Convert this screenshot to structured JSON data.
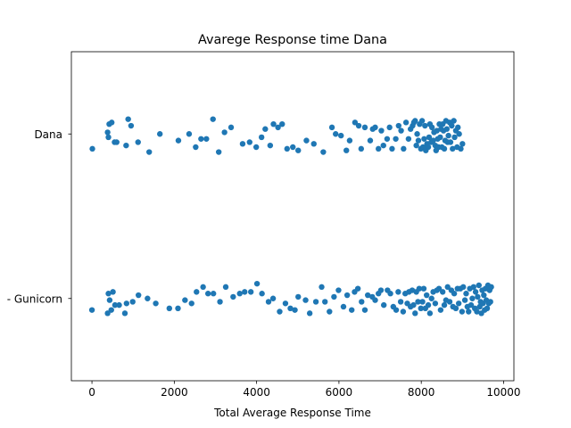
{
  "chart_data": {
    "type": "scatter",
    "title": "Avarege Response time Dana",
    "xlabel": "Total Average Response Time",
    "ylabel": "",
    "xlim": [
      -500,
      10250
    ],
    "x_ticks": [
      0,
      2000,
      4000,
      6000,
      8000,
      10000
    ],
    "categories": [
      "Dana",
      "Gunicorn"
    ],
    "category_tick_labels": [
      "Dana",
      "- Gunicorn"
    ],
    "marker_color": "#1f77b4",
    "grid": false,
    "series": [
      {
        "category": "Dana",
        "x": [
          10,
          380,
          400,
          420,
          480,
          550,
          600,
          830,
          880,
          950,
          1120,
          1390,
          1650,
          2100,
          2360,
          2520,
          2650,
          2780,
          2940,
          3080,
          3220,
          3380,
          3660,
          3830,
          3990,
          4120,
          4210,
          4330,
          4410,
          4520,
          4620,
          4740,
          4880,
          5010,
          5210,
          5390,
          5620,
          5830,
          5920,
          6050,
          6180,
          6260,
          6390,
          6480,
          6540,
          6630,
          6760,
          6820,
          6880,
          6960,
          7030,
          7080,
          7170,
          7230,
          7290,
          7380,
          7450,
          7510,
          7570,
          7630,
          7690,
          7740,
          7790,
          7820,
          7850,
          7880,
          7900,
          7930,
          7960,
          7990,
          8020,
          8040,
          8070,
          8090,
          8110,
          8140,
          8170,
          8190,
          8210,
          8240,
          8260,
          8290,
          8310,
          8340,
          8360,
          8380,
          8400,
          8420,
          8440,
          8460,
          8480,
          8500,
          8520,
          8540,
          8560,
          8580,
          8600,
          8620,
          8640,
          8660,
          8690,
          8710,
          8740,
          8760,
          8790,
          8810,
          8840,
          8870,
          8890,
          8920,
          8960,
          9000
        ],
        "y_jitter": [
          0.09,
          -0.01,
          0.02,
          -0.06,
          -0.07,
          0.05,
          0.05,
          0.07,
          -0.09,
          -0.05,
          0.05,
          0.11,
          0.0,
          0.04,
          0.0,
          0.08,
          0.03,
          0.03,
          -0.09,
          0.11,
          -0.01,
          -0.04,
          0.06,
          0.05,
          0.08,
          0.02,
          -0.03,
          0.07,
          -0.06,
          -0.04,
          -0.06,
          0.09,
          0.08,
          0.1,
          0.04,
          0.06,
          0.11,
          -0.04,
          0.0,
          0.01,
          0.1,
          0.04,
          -0.07,
          -0.05,
          0.09,
          -0.04,
          0.04,
          -0.03,
          -0.04,
          0.09,
          -0.02,
          0.07,
          0.03,
          -0.04,
          0.09,
          0.03,
          -0.05,
          -0.02,
          0.09,
          -0.07,
          0.03,
          -0.03,
          -0.05,
          -0.07,
          -0.08,
          0.07,
          0.0,
          0.04,
          -0.06,
          0.09,
          -0.08,
          0.08,
          0.03,
          -0.05,
          0.1,
          0.06,
          0.08,
          0.02,
          -0.06,
          0.05,
          -0.04,
          0.04,
          -0.01,
          0.07,
          0.1,
          -0.02,
          0.03,
          0.08,
          -0.06,
          0.02,
          -0.03,
          0.08,
          -0.06,
          -0.02,
          0.09,
          0.04,
          -0.08,
          -0.03,
          0.05,
          0.01,
          -0.07,
          0.05,
          -0.05,
          0.09,
          -0.08,
          0.02,
          -0.02,
          0.08,
          -0.04,
          0.0,
          0.09,
          0.06
        ]
      },
      {
        "category": "Gunicorn",
        "x": [
          0,
          380,
          400,
          430,
          470,
          510,
          560,
          660,
          800,
          840,
          990,
          1130,
          1350,
          1550,
          1880,
          2090,
          2260,
          2420,
          2540,
          2700,
          2820,
          2950,
          3110,
          3250,
          3430,
          3590,
          3710,
          3860,
          4010,
          4130,
          4290,
          4400,
          4560,
          4700,
          4820,
          4930,
          5010,
          5190,
          5290,
          5440,
          5580,
          5660,
          5770,
          5880,
          5990,
          6110,
          6200,
          6310,
          6380,
          6460,
          6550,
          6630,
          6700,
          6810,
          6880,
          6960,
          7020,
          7090,
          7180,
          7250,
          7320,
          7390,
          7440,
          7500,
          7560,
          7610,
          7660,
          7700,
          7740,
          7780,
          7810,
          7850,
          7880,
          7920,
          7950,
          7990,
          8030,
          8060,
          8100,
          8130,
          8170,
          8210,
          8250,
          8290,
          8340,
          8380,
          8430,
          8470,
          8520,
          8560,
          8600,
          8640,
          8690,
          8730,
          8770,
          8800,
          8840,
          8880,
          8910,
          8950,
          8990,
          9020,
          9060,
          9090,
          9120,
          9150,
          9180,
          9210,
          9240,
          9270,
          9300,
          9320,
          9350,
          9370,
          9400,
          9420,
          9440,
          9460,
          9480,
          9500,
          9520,
          9540,
          9560,
          9580,
          9600,
          9620,
          9640,
          9660,
          9680,
          9700
        ],
        "y_jitter": [
          0.07,
          0.09,
          -0.03,
          0.01,
          0.07,
          -0.04,
          0.04,
          0.04,
          0.09,
          0.03,
          0.02,
          -0.02,
          0.0,
          0.03,
          0.06,
          0.06,
          0.01,
          0.03,
          -0.04,
          -0.07,
          -0.03,
          -0.03,
          0.02,
          -0.07,
          -0.01,
          -0.03,
          -0.04,
          -0.04,
          -0.09,
          -0.03,
          0.02,
          0.0,
          0.08,
          0.03,
          0.06,
          0.07,
          -0.01,
          0.01,
          0.09,
          0.02,
          -0.07,
          0.02,
          0.08,
          -0.01,
          -0.05,
          0.05,
          -0.02,
          0.07,
          -0.04,
          -0.06,
          0.02,
          0.07,
          -0.02,
          -0.01,
          0.01,
          -0.03,
          -0.05,
          0.04,
          -0.05,
          -0.03,
          0.05,
          0.07,
          -0.04,
          0.02,
          0.08,
          -0.03,
          0.03,
          -0.04,
          0.05,
          -0.05,
          0.04,
          0.09,
          -0.04,
          0.02,
          -0.06,
          0.06,
          0.02,
          -0.06,
          0.06,
          -0.02,
          0.04,
          0.09,
          0.0,
          -0.04,
          0.03,
          -0.05,
          -0.06,
          0.07,
          -0.04,
          0.04,
          0.01,
          -0.07,
          0.02,
          -0.05,
          0.05,
          -0.03,
          0.06,
          -0.06,
          0.03,
          -0.06,
          0.08,
          -0.07,
          0.01,
          -0.03,
          0.05,
          0.08,
          -0.06,
          0.04,
          0.0,
          -0.07,
          0.06,
          -0.04,
          0.08,
          -0.01,
          -0.08,
          0.05,
          0.02,
          0.09,
          -0.05,
          0.03,
          -0.02,
          0.07,
          -0.06,
          0.01,
          0.06,
          -0.08,
          0.03,
          -0.05,
          0.02,
          -0.07
        ]
      }
    ]
  }
}
